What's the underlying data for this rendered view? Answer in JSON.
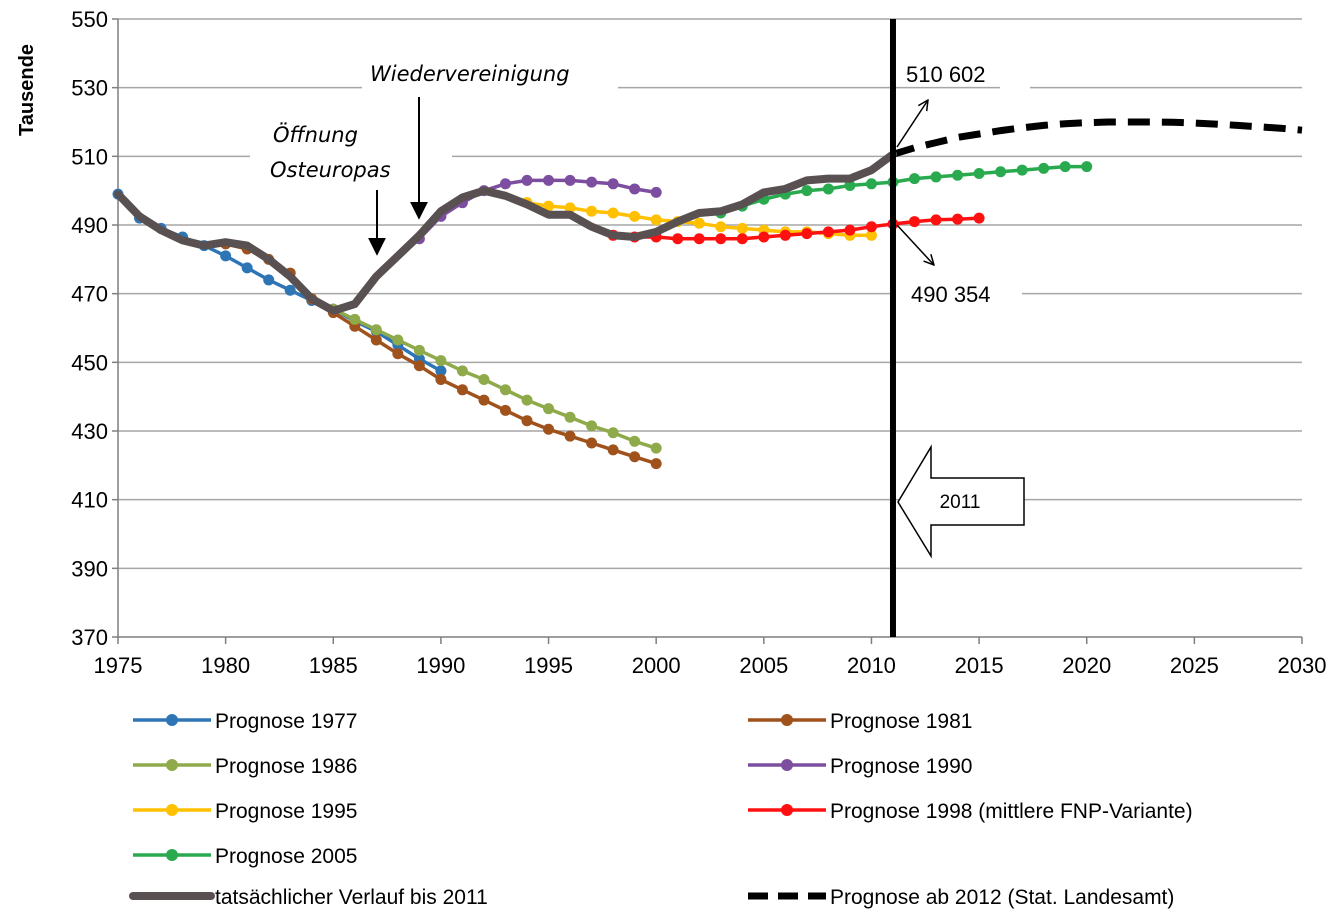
{
  "chart_data": {
    "type": "line",
    "ylabel": "Tausende",
    "xlim": [
      1975,
      2030
    ],
    "ylim": [
      370,
      550
    ],
    "x_ticks": [
      "1975",
      "1980",
      "1985",
      "1990",
      "1995",
      "2000",
      "2005",
      "2010",
      "2015",
      "2020",
      "2025",
      "2030"
    ],
    "y_ticks": [
      "370",
      "390",
      "410",
      "430",
      "450",
      "470",
      "490",
      "510",
      "530",
      "550"
    ],
    "grid": "horizontal",
    "legend_position": "bottom",
    "series": [
      {
        "name": "Prognose 1977",
        "color": "#2e75b6",
        "markers": true,
        "x": [
          1975,
          1976,
          1977,
          1978,
          1979,
          1980,
          1981,
          1982,
          1983,
          1984,
          1985,
          1986,
          1987,
          1988,
          1989,
          1990
        ],
        "y": [
          499,
          492,
          489,
          486.5,
          484,
          481,
          477.5,
          474,
          471,
          468,
          465.5,
          462,
          459,
          455,
          451,
          447.5
        ]
      },
      {
        "name": "Prognose 1981",
        "color": "#a0521d",
        "markers": true,
        "x": [
          1980,
          1981,
          1982,
          1983,
          1984,
          1985,
          1986,
          1987,
          1988,
          1989,
          1990,
          1991,
          1992,
          1993,
          1994,
          1995,
          1996,
          1997,
          1998,
          1999,
          2000
        ],
        "y": [
          484.5,
          483,
          480,
          476,
          468.5,
          464.5,
          460.5,
          456.5,
          452.5,
          449,
          445,
          442,
          439,
          436,
          433,
          430.5,
          428.5,
          426.5,
          424.5,
          422.5,
          420.5
        ]
      },
      {
        "name": "Prognose 1986",
        "color": "#8faa4a",
        "markers": true,
        "x": [
          1985,
          1986,
          1987,
          1988,
          1989,
          1990,
          1991,
          1992,
          1993,
          1994,
          1995,
          1996,
          1997,
          1998,
          1999,
          2000
        ],
        "y": [
          465.5,
          462.5,
          459.5,
          456.5,
          453.5,
          450.5,
          447.5,
          445,
          442,
          439,
          436.5,
          434,
          431.5,
          429.5,
          427,
          425
        ]
      },
      {
        "name": "Prognose 1990",
        "color": "#7d4ea0",
        "markers": true,
        "x": [
          1989,
          1990,
          1991,
          1992,
          1993,
          1994,
          1995,
          1996,
          1997,
          1998,
          1999,
          2000
        ],
        "y": [
          486,
          492.5,
          496.5,
          500,
          502,
          503,
          503,
          503,
          502.5,
          502,
          500.5,
          499.5
        ]
      },
      {
        "name": "Prognose 1995",
        "color": "#ffc000",
        "markers": true,
        "x": [
          1994,
          1995,
          1996,
          1997,
          1998,
          1999,
          2000,
          2001,
          2002,
          2003,
          2004,
          2005,
          2006,
          2007,
          2008,
          2009,
          2010
        ],
        "y": [
          496.5,
          495.5,
          495,
          494,
          493.5,
          492.5,
          491.5,
          491,
          490.5,
          489.5,
          489,
          488.5,
          488,
          488,
          487.5,
          487,
          487
        ]
      },
      {
        "name": "Prognose 1998 (mittlere FNP-Variante)",
        "color": "#ff1010",
        "markers": true,
        "x": [
          1998,
          1999,
          2000,
          2001,
          2002,
          2003,
          2004,
          2005,
          2006,
          2007,
          2008,
          2009,
          2010,
          2011,
          2012,
          2013,
          2014,
          2015
        ],
        "y": [
          487,
          486.5,
          486.5,
          486,
          486,
          486,
          486,
          486.5,
          487,
          487.5,
          488,
          488.5,
          489.5,
          490.3,
          491,
          491.5,
          491.7,
          492
        ]
      },
      {
        "name": "Prognose 2005",
        "color": "#2aaa4f",
        "markers": true,
        "x": [
          2003,
          2004,
          2005,
          2006,
          2007,
          2008,
          2009,
          2010,
          2011,
          2012,
          2013,
          2014,
          2015,
          2016,
          2017,
          2018,
          2019,
          2020
        ],
        "y": [
          493.5,
          495.5,
          497.5,
          499,
          500,
          500.5,
          501.5,
          502,
          502.5,
          503.5,
          504,
          504.5,
          505,
          505.5,
          506,
          506.5,
          507,
          507
        ]
      },
      {
        "name": "tatsächlicher Verlauf bis 2011",
        "color": "#595151",
        "markers": false,
        "x": [
          1975,
          1976,
          1977,
          1978,
          1979,
          1980,
          1981,
          1982,
          1983,
          1984,
          1985,
          1986,
          1987,
          1988,
          1989,
          1990,
          1991,
          1992,
          1993,
          1994,
          1995,
          1996,
          1997,
          1998,
          1999,
          2000,
          2001,
          2002,
          2003,
          2004,
          2005,
          2006,
          2007,
          2008,
          2009,
          2010,
          2011
        ],
        "y": [
          499,
          492.5,
          488.5,
          485.5,
          484,
          485,
          484,
          480,
          475,
          468.5,
          465,
          467,
          475,
          481,
          487,
          494,
          498,
          500,
          498.5,
          496,
          493,
          493,
          489.5,
          487,
          486.5,
          488,
          491,
          493.5,
          494,
          496,
          499.5,
          500.5,
          503,
          503.5,
          503.5,
          506,
          510.6
        ]
      },
      {
        "name": "Prognose ab 2012 (Stat. Landesamt)",
        "color": "#000000",
        "markers": false,
        "dashed": true,
        "x": [
          2011,
          2012,
          2013,
          2014,
          2015,
          2016,
          2017,
          2018,
          2019,
          2020,
          2021,
          2022,
          2023,
          2024,
          2025,
          2026,
          2027,
          2028,
          2029,
          2030
        ],
        "y": [
          510.6,
          512.5,
          514,
          515.5,
          516.5,
          517.5,
          518.3,
          519,
          519.5,
          519.8,
          520,
          520,
          520,
          519.9,
          519.7,
          519.4,
          519,
          518.6,
          518.2,
          517.6
        ]
      }
    ],
    "annotations": {
      "wiedervereinigung": "Wiedervereinigung",
      "oeffnung_line1": "Öffnung",
      "oeffnung_line2": "Osteuropas",
      "value_top": "510 602",
      "value_bottom": "490 354",
      "year_marker": "2011"
    },
    "reference_line_year": 2011
  }
}
